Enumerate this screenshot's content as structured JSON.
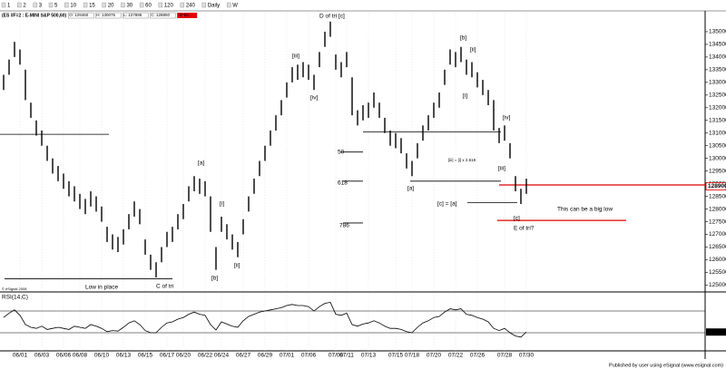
{
  "header": {
    "intervals": [
      "1",
      "2",
      "3",
      "5",
      "10",
      "15",
      "20",
      "30",
      "60",
      "120",
      "240",
      "Daily",
      "W"
    ],
    "symbol": "(ES #F=2 : E-MINI S&P 500,60)",
    "quote": [
      "O: 128460",
      "H: 130075",
      "L: 127895",
      "C: 128850"
    ],
    "change": "-3050"
  },
  "footer": "Published by user using eSignal (www.esignal.com)",
  "copyright": "© eSignal 2008",
  "chart_data": [
    {
      "type": "ohlc",
      "categories": [
        null,
        null,
        null,
        "06/01",
        null,
        null,
        null,
        "06/03",
        null,
        null,
        null,
        "06/06",
        null,
        null,
        "06/08",
        null,
        null,
        null,
        "06/10",
        null,
        null,
        null,
        "06/13",
        null,
        null,
        null,
        "06/15",
        null,
        null,
        null,
        "06/17",
        null,
        null,
        "06/20",
        null,
        null,
        null,
        "06/22",
        null,
        null,
        "06/24",
        null,
        null,
        null,
        "06/27",
        null,
        null,
        null,
        "06/29",
        null,
        null,
        null,
        "07/01",
        null,
        null,
        null,
        "07/06",
        null,
        null,
        null,
        null,
        "07/08",
        null,
        "07/11",
        null,
        null,
        null,
        "07/13",
        null,
        null,
        null,
        null,
        "07/15",
        null,
        null,
        "07/18",
        null,
        null,
        null,
        "07/20",
        null,
        null,
        null,
        "07/22",
        null,
        null,
        null,
        "07/26",
        null,
        null,
        null,
        null,
        "07/28",
        null,
        null,
        null,
        "07/30"
      ],
      "high": [
        133300,
        133900,
        134600,
        134300,
        133500,
        132200,
        131500,
        131100,
        130500,
        130000,
        129700,
        129400,
        129100,
        128900,
        128600,
        128400,
        128700,
        128500,
        128100,
        127300,
        127000,
        126900,
        127200,
        127800,
        128300,
        128000,
        126800,
        126200,
        125900,
        126500,
        127100,
        127300,
        127800,
        128200,
        128900,
        129300,
        129200,
        129100,
        128500,
        126500,
        127700,
        127400,
        127000,
        126700,
        127600,
        128500,
        129200,
        129900,
        130500,
        131100,
        131700,
        132300,
        133000,
        133600,
        133700,
        133800,
        133700,
        133300,
        134200,
        135000,
        135400,
        134100,
        133800,
        134200,
        133200,
        131900,
        132100,
        132200,
        132600,
        132200,
        131600,
        131100,
        131000,
        130800,
        130200,
        129900,
        130600,
        131300,
        131700,
        132200,
        132600,
        133500,
        134300,
        134200,
        134400,
        133900,
        133800,
        133400,
        133100,
        132700,
        132300,
        131200,
        131300,
        130600,
        129300,
        128800,
        129200
      ],
      "low": [
        132700,
        133300,
        134000,
        133700,
        132300,
        131600,
        130900,
        130500,
        129900,
        129400,
        129100,
        128800,
        128500,
        128300,
        128000,
        127800,
        128100,
        127900,
        127500,
        126700,
        126400,
        126300,
        126600,
        127200,
        127700,
        127400,
        126200,
        125600,
        125300,
        125900,
        126500,
        126700,
        127200,
        127600,
        128300,
        128700,
        128600,
        128500,
        127100,
        125600,
        127100,
        126800,
        126400,
        126100,
        127000,
        127900,
        128600,
        129300,
        129900,
        130500,
        131100,
        131700,
        132400,
        133000,
        133100,
        133200,
        133100,
        132700,
        133600,
        134400,
        134800,
        133500,
        133200,
        133600,
        131700,
        131300,
        131500,
        131600,
        132000,
        131600,
        131000,
        130500,
        130400,
        130200,
        129600,
        129300,
        130000,
        130700,
        131100,
        131600,
        132000,
        132900,
        133700,
        133600,
        133800,
        133300,
        133200,
        132800,
        132500,
        132100,
        131100,
        130600,
        130700,
        130000,
        128700,
        128200,
        128600
      ],
      "color": "#000000",
      "ylim": [
        124800,
        135750
      ],
      "yticks": [
        125000,
        125500,
        126000,
        126500,
        127000,
        127500,
        128000,
        128500,
        129000,
        129500,
        130000,
        130500,
        131000,
        131500,
        132000,
        132500,
        133000,
        133500,
        134000,
        134500,
        135000
      ],
      "last_price": 128900,
      "levels": [
        {
          "value": 130950,
          "color": "#000000"
        },
        {
          "value": 125250,
          "color": "#000000"
        },
        {
          "value": 131050,
          "color": "#000000"
        },
        {
          "value": 129100,
          "color": "#000000"
        },
        {
          "value": 128250,
          "color": "#000000"
        },
        {
          "value": 130250,
          "color": "#000000"
        },
        {
          "value": 129100,
          "color": "#000000"
        },
        {
          "value": 127450,
          "color": "#000000"
        },
        {
          "value": 128950,
          "color": "#e00000"
        },
        {
          "value": 127550,
          "color": "#e00000"
        }
      ],
      "annotations": [
        "D of tri [c]",
        "[a]",
        "[b]",
        "C of tri",
        "Low in place",
        "[i]",
        "[ii]",
        "[iii]",
        "[iv]",
        "[b]",
        "[ii]",
        "[i]",
        "[a]",
        "[iv]",
        "[iii]",
        "[iii] = [i] x 2.618",
        "[c] = [a]",
        "[c]",
        "E of tri?",
        "This can be a big low",
        "50",
        "618",
        "786"
      ]
    },
    {
      "type": "line",
      "title": "RSI(14,C)",
      "color": "#000000",
      "values": [
        58,
        66,
        72,
        62,
        45,
        40,
        38,
        42,
        36,
        38,
        40,
        38,
        36,
        42,
        40,
        38,
        45,
        42,
        38,
        32,
        34,
        33,
        40,
        48,
        52,
        45,
        34,
        30,
        30,
        40,
        48,
        50,
        55,
        58,
        64,
        68,
        64,
        62,
        45,
        35,
        50,
        46,
        42,
        40,
        52,
        60,
        64,
        68,
        70,
        72,
        74,
        76,
        80,
        82,
        80,
        80,
        78,
        70,
        78,
        84,
        86,
        64,
        62,
        66,
        45,
        42,
        46,
        48,
        52,
        48,
        42,
        38,
        38,
        36,
        32,
        30,
        40,
        48,
        52,
        58,
        60,
        68,
        74,
        72,
        74,
        64,
        62,
        58,
        55,
        50,
        38,
        34,
        38,
        30,
        24,
        22,
        31.27
      ],
      "ylim": [
        0,
        100
      ],
      "ref_lines": [
        70,
        30
      ]
    }
  ]
}
